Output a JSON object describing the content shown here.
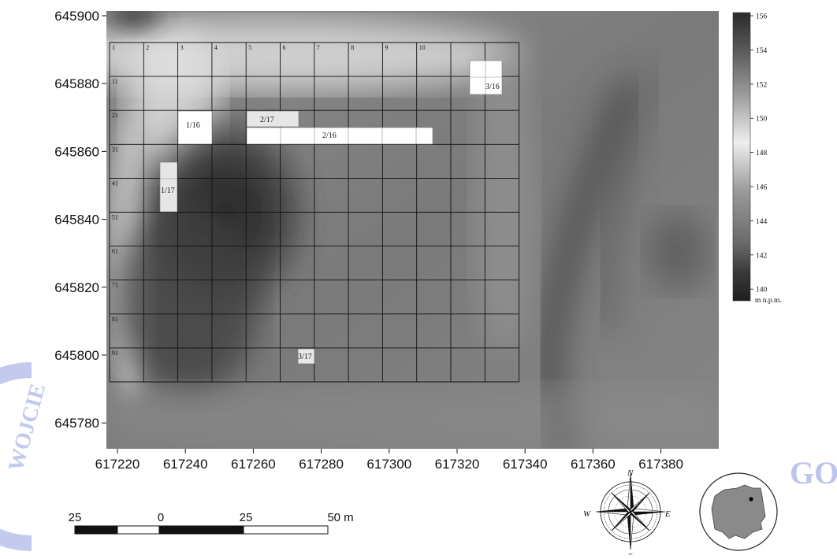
{
  "map": {
    "y_axis_labels": [
      "645900",
      "645880",
      "645860",
      "645840",
      "645820",
      "645800",
      "645780"
    ],
    "x_axis_labels": [
      "617220",
      "617240",
      "617260",
      "617280",
      "617300",
      "617320",
      "617340",
      "617360",
      "617380"
    ],
    "grid_cell_numbers": [
      "1",
      "2",
      "3",
      "4",
      "5",
      "6",
      "7",
      "8",
      "9",
      "10",
      "11",
      "21",
      "31",
      "41",
      "51",
      "61",
      "71",
      "81",
      "91"
    ],
    "trenches": [
      {
        "label": "1/16",
        "tone": "#ffffff"
      },
      {
        "label": "2/17",
        "tone": "#e6e6e6"
      },
      {
        "label": "2/16",
        "tone": "#ffffff"
      },
      {
        "label": "3/16",
        "tone": "#ffffff"
      },
      {
        "label": "1/17",
        "tone": "#e6e6e6"
      },
      {
        "label": "3/17",
        "tone": "#e6e6e6"
      }
    ]
  },
  "legend": {
    "tick_labels": [
      "156",
      "154",
      "152",
      "150",
      "148",
      "146",
      "144",
      "142",
      "140"
    ],
    "unit": "m n.p.m."
  },
  "scalebar": {
    "labels": [
      "25",
      "0",
      "25",
      "50 m"
    ]
  },
  "compass": {
    "directions": [
      "N",
      "E",
      "S",
      "W"
    ]
  },
  "watermark_text": "WOJCIE",
  "watermark_right": "GO",
  "colors": {
    "terrain_low": "#2e2e2e",
    "terrain_high": "#ececec",
    "grid_line": "#111111",
    "watermark": "#bcc4ec"
  }
}
